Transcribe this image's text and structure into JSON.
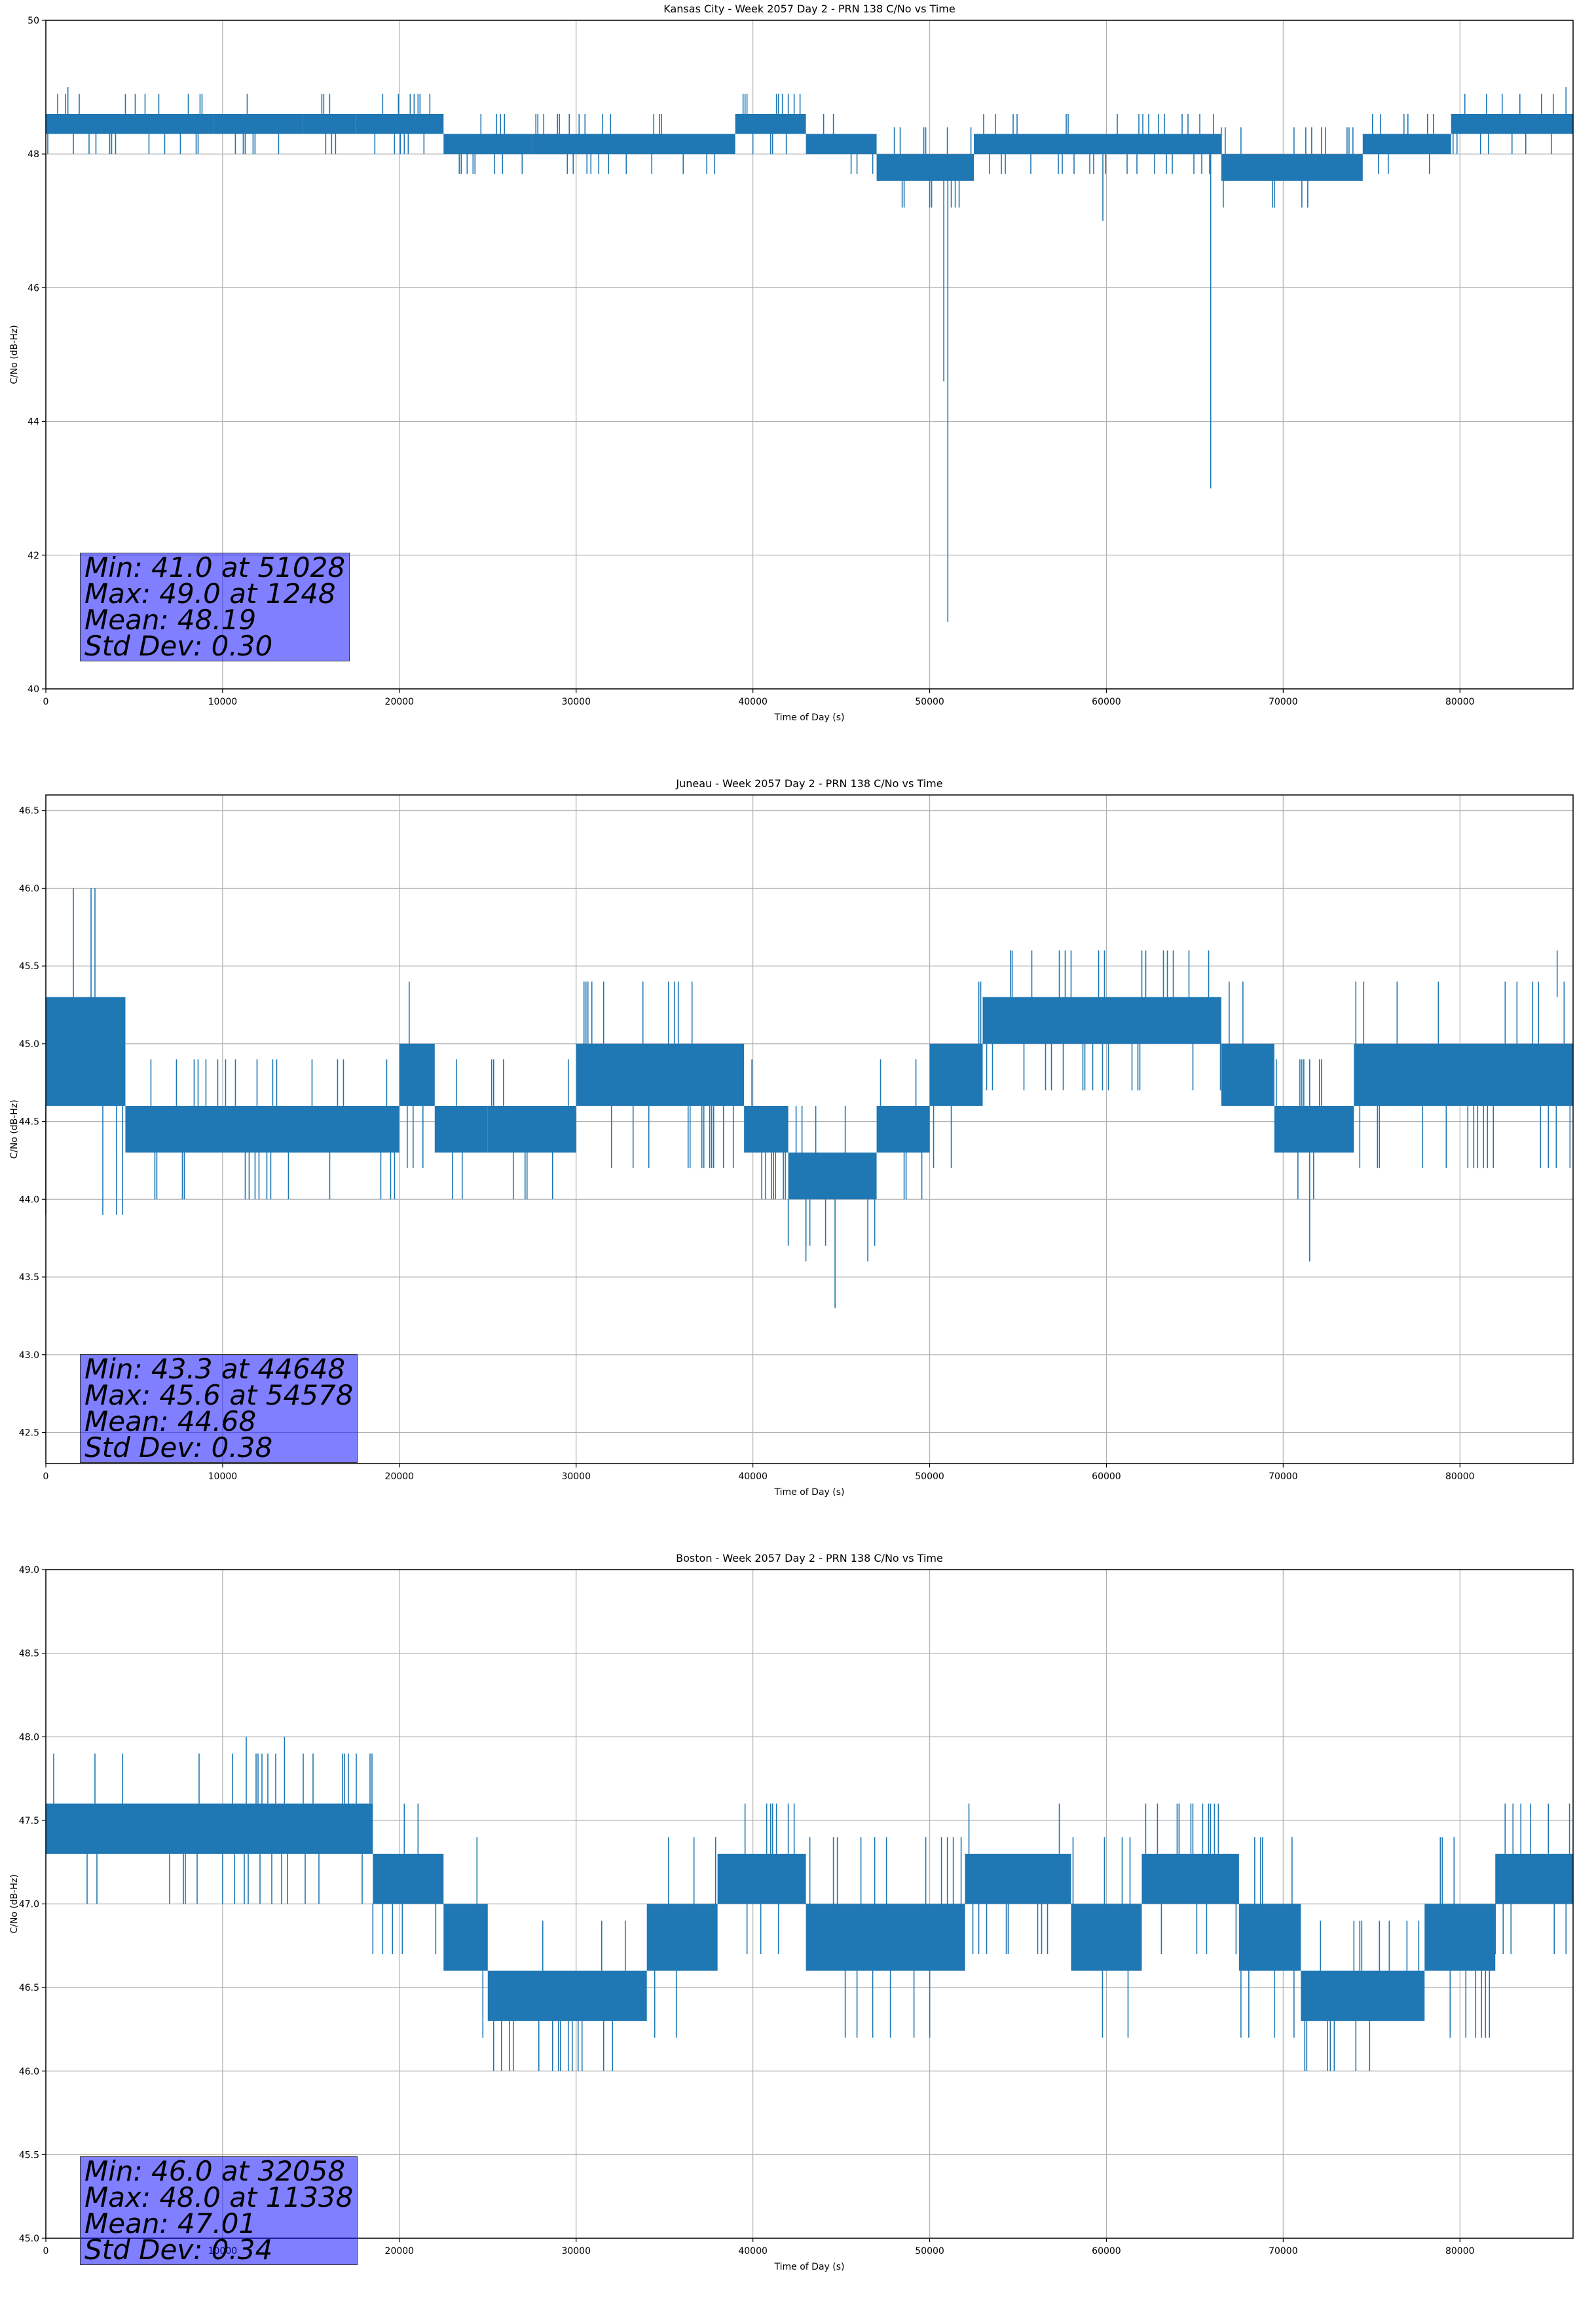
{
  "colors": {
    "series": "#1f77b4",
    "grid": "#b0b0b0",
    "stats_bg": "#8080ff"
  },
  "chart_data": [
    {
      "type": "line",
      "title": "Kansas City - Week 2057 Day 2 - PRN 138 C/No vs Time",
      "xlabel": "Time of Day (s)",
      "ylabel": "C/No (dB-Hz)",
      "xlim": [
        0,
        86400
      ],
      "ylim": [
        40,
        50
      ],
      "xticks": [
        0,
        10000,
        20000,
        30000,
        40000,
        50000,
        60000,
        70000,
        80000
      ],
      "yticks": [
        40,
        42,
        44,
        46,
        48,
        50
      ],
      "ytick_labels": [
        "40",
        "42",
        "44",
        "46",
        "48",
        "50"
      ],
      "grid": true,
      "series": [
        {
          "name": "C/No",
          "segments": [
            {
              "x0": 0,
              "x1": 2500,
              "lo": 48.3,
              "hi": 48.6
            },
            {
              "x0": 2500,
              "x1": 9500,
              "lo": 48.3,
              "hi": 48.6
            },
            {
              "x0": 9500,
              "x1": 14500,
              "lo": 48.3,
              "hi": 48.6
            },
            {
              "x0": 14500,
              "x1": 17500,
              "lo": 48.3,
              "hi": 48.6
            },
            {
              "x0": 17500,
              "x1": 22500,
              "lo": 48.3,
              "hi": 48.6
            },
            {
              "x0": 22500,
              "x1": 27500,
              "lo": 48.0,
              "hi": 48.3
            },
            {
              "x0": 27500,
              "x1": 39000,
              "lo": 48.0,
              "hi": 48.3
            },
            {
              "x0": 39000,
              "x1": 43000,
              "lo": 48.3,
              "hi": 48.6
            },
            {
              "x0": 43000,
              "x1": 47000,
              "lo": 48.0,
              "hi": 48.3
            },
            {
              "x0": 47000,
              "x1": 52500,
              "lo": 47.6,
              "hi": 48.0
            },
            {
              "x0": 52500,
              "x1": 66500,
              "lo": 48.0,
              "hi": 48.3
            },
            {
              "x0": 66500,
              "x1": 74500,
              "lo": 47.6,
              "hi": 48.0
            },
            {
              "x0": 74500,
              "x1": 79500,
              "lo": 48.0,
              "hi": 48.3
            },
            {
              "x0": 79500,
              "x1": 86400,
              "lo": 48.3,
              "hi": 48.6
            }
          ],
          "outliers": [
            {
              "x": 51028,
              "lo": 41.0,
              "hi": 48.0
            },
            {
              "x": 50800,
              "lo": 44.6,
              "hi": 48.0
            },
            {
              "x": 65900,
              "lo": 43.0,
              "hi": 48.0
            },
            {
              "x": 59800,
              "lo": 47.0,
              "hi": 48.0
            },
            {
              "x": 1248,
              "lo": 48.6,
              "hi": 49.0
            },
            {
              "x": 86000,
              "lo": 48.6,
              "hi": 49.0
            }
          ]
        }
      ],
      "stats": [
        "Min: 41.0 at 51028",
        "Max: 49.0 at 1248",
        "Mean: 48.19",
        "Std Dev: 0.30"
      ],
      "legend": "none"
    },
    {
      "type": "line",
      "title": "Juneau - Week 2057 Day 2 - PRN 138 C/No vs Time",
      "xlabel": "Time of Day (s)",
      "ylabel": "C/No (dB-Hz)",
      "xlim": [
        0,
        86400
      ],
      "ylim": [
        42.3,
        46.6
      ],
      "xticks": [
        0,
        10000,
        20000,
        30000,
        40000,
        50000,
        60000,
        70000,
        80000
      ],
      "yticks": [
        42.5,
        43.0,
        43.5,
        44.0,
        44.5,
        45.0,
        45.5,
        46.0,
        46.5
      ],
      "ytick_labels": [
        "42.5",
        "43.0",
        "43.5",
        "44.0",
        "44.5",
        "45.0",
        "45.5",
        "46.0",
        "46.5"
      ],
      "grid": true,
      "series": [
        {
          "name": "C/No",
          "segments": [
            {
              "x0": 0,
              "x1": 4500,
              "lo": 44.6,
              "hi": 45.3
            },
            {
              "x0": 4500,
              "x1": 20000,
              "lo": 44.3,
              "hi": 44.6
            },
            {
              "x0": 20000,
              "x1": 22000,
              "lo": 44.6,
              "hi": 45.0
            },
            {
              "x0": 22000,
              "x1": 25000,
              "lo": 44.3,
              "hi": 44.6
            },
            {
              "x0": 25000,
              "x1": 30000,
              "lo": 44.3,
              "hi": 44.6
            },
            {
              "x0": 30000,
              "x1": 39500,
              "lo": 44.6,
              "hi": 45.0
            },
            {
              "x0": 39500,
              "x1": 42000,
              "lo": 44.3,
              "hi": 44.6
            },
            {
              "x0": 42000,
              "x1": 47000,
              "lo": 44.0,
              "hi": 44.3
            },
            {
              "x0": 47000,
              "x1": 50000,
              "lo": 44.3,
              "hi": 44.6
            },
            {
              "x0": 50000,
              "x1": 53000,
              "lo": 44.6,
              "hi": 45.0
            },
            {
              "x0": 53000,
              "x1": 66500,
              "lo": 45.0,
              "hi": 45.3
            },
            {
              "x0": 66500,
              "x1": 69500,
              "lo": 44.6,
              "hi": 45.0
            },
            {
              "x0": 69500,
              "x1": 74000,
              "lo": 44.3,
              "hi": 44.6
            },
            {
              "x0": 74000,
              "x1": 86400,
              "lo": 44.6,
              "hi": 45.0
            }
          ],
          "outliers": [
            {
              "x": 44648,
              "lo": 43.3,
              "hi": 44.0
            },
            {
              "x": 43000,
              "lo": 43.6,
              "hi": 44.0
            },
            {
              "x": 46500,
              "lo": 43.6,
              "hi": 44.0
            },
            {
              "x": 71500,
              "lo": 43.6,
              "hi": 44.3
            },
            {
              "x": 54578,
              "lo": 45.3,
              "hi": 45.6
            },
            {
              "x": 58000,
              "lo": 45.3,
              "hi": 45.6
            },
            {
              "x": 85500,
              "lo": 45.3,
              "hi": 45.6
            }
          ]
        }
      ],
      "stats": [
        "Min: 43.3 at 44648",
        "Max: 45.6 at 54578",
        "Mean: 44.68",
        "Std Dev: 0.38"
      ],
      "legend": "none"
    },
    {
      "type": "line",
      "title": "Boston - Week 2057 Day 2 - PRN 138 C/No vs Time",
      "xlabel": "Time of Day (s)",
      "ylabel": "C/No (dB-Hz)",
      "xlim": [
        0,
        86400
      ],
      "ylim": [
        45.0,
        49.0
      ],
      "xticks": [
        0,
        10000,
        20000,
        30000,
        40000,
        50000,
        60000,
        70000,
        80000
      ],
      "yticks": [
        45.0,
        45.5,
        46.0,
        46.5,
        47.0,
        47.5,
        48.0,
        48.5,
        49.0
      ],
      "ytick_labels": [
        "45.0",
        "45.5",
        "46.0",
        "46.5",
        "47.0",
        "47.5",
        "48.0",
        "48.5",
        "49.0"
      ],
      "grid": true,
      "series": [
        {
          "name": "C/No",
          "segments": [
            {
              "x0": 0,
              "x1": 18500,
              "lo": 47.3,
              "hi": 47.6
            },
            {
              "x0": 18500,
              "x1": 22500,
              "lo": 47.0,
              "hi": 47.3
            },
            {
              "x0": 22500,
              "x1": 25000,
              "lo": 46.6,
              "hi": 47.0
            },
            {
              "x0": 25000,
              "x1": 34000,
              "lo": 46.3,
              "hi": 46.6
            },
            {
              "x0": 34000,
              "x1": 38000,
              "lo": 46.6,
              "hi": 47.0
            },
            {
              "x0": 38000,
              "x1": 43000,
              "lo": 47.0,
              "hi": 47.3
            },
            {
              "x0": 43000,
              "x1": 52000,
              "lo": 46.6,
              "hi": 47.0
            },
            {
              "x0": 52000,
              "x1": 58000,
              "lo": 47.0,
              "hi": 47.3
            },
            {
              "x0": 58000,
              "x1": 62000,
              "lo": 46.6,
              "hi": 47.0
            },
            {
              "x0": 62000,
              "x1": 67500,
              "lo": 47.0,
              "hi": 47.3
            },
            {
              "x0": 67500,
              "x1": 71000,
              "lo": 46.6,
              "hi": 47.0
            },
            {
              "x0": 71000,
              "x1": 78000,
              "lo": 46.3,
              "hi": 46.6
            },
            {
              "x0": 78000,
              "x1": 82000,
              "lo": 46.6,
              "hi": 47.0
            },
            {
              "x0": 82000,
              "x1": 86400,
              "lo": 47.0,
              "hi": 47.3
            }
          ],
          "outliers": [
            {
              "x": 32058,
              "lo": 46.0,
              "hi": 46.3
            },
            {
              "x": 72500,
              "lo": 46.0,
              "hi": 46.3
            },
            {
              "x": 11338,
              "lo": 47.6,
              "hi": 48.0
            },
            {
              "x": 13500,
              "lo": 47.6,
              "hi": 48.0
            },
            {
              "x": 42000,
              "lo": 47.3,
              "hi": 47.6
            },
            {
              "x": 86200,
              "lo": 47.3,
              "hi": 47.6
            }
          ]
        }
      ],
      "stats": [
        "Min: 46.0 at 32058",
        "Max: 48.0 at 11338",
        "Mean: 47.01",
        "Std Dev: 0.34"
      ],
      "legend": "none"
    }
  ]
}
